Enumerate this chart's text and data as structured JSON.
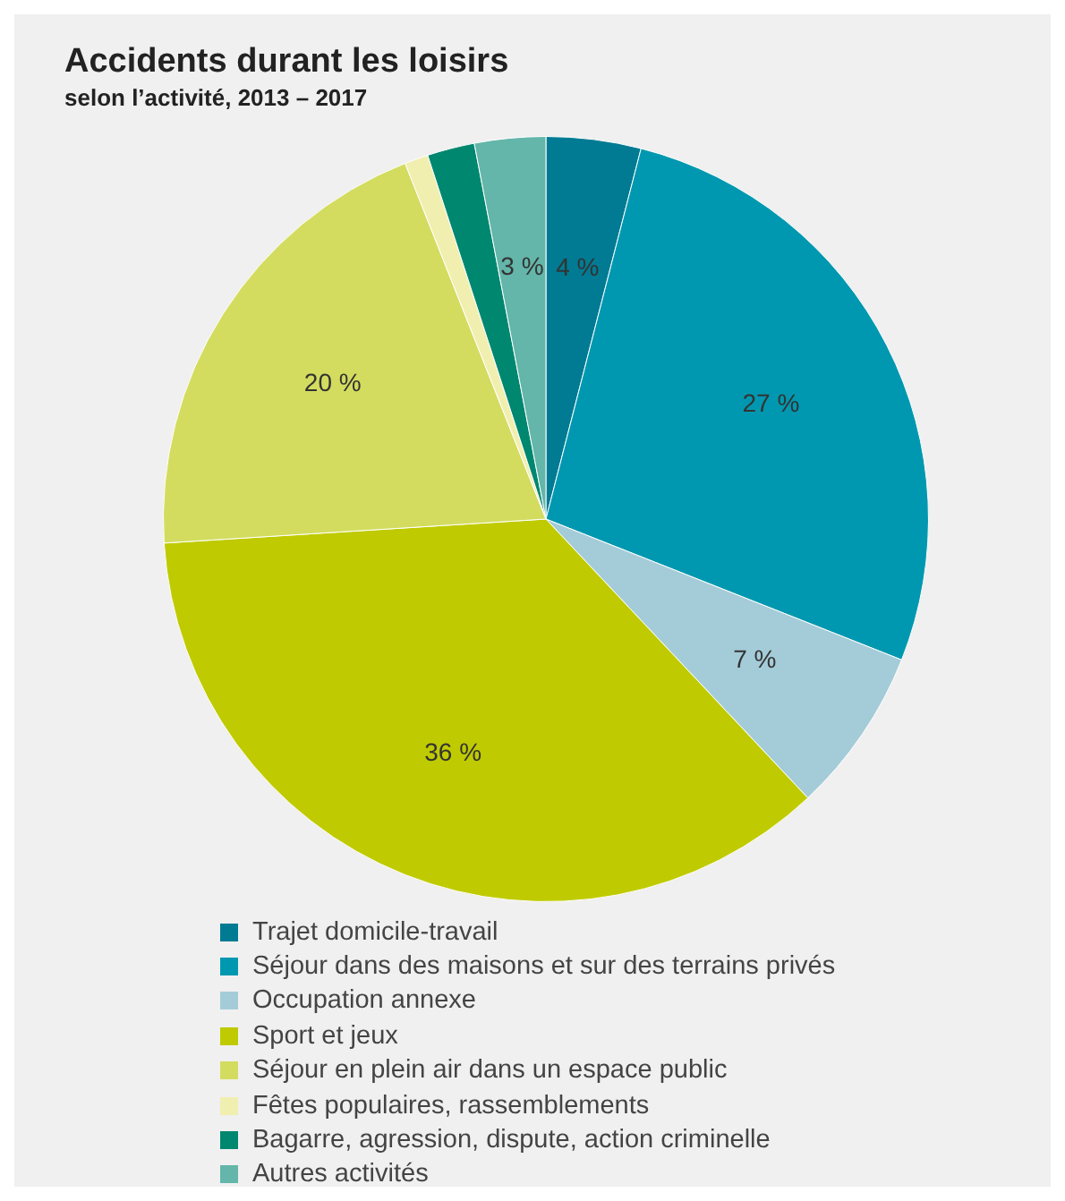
{
  "chart_data": {
    "type": "pie",
    "title": "Accidents durant les loisirs",
    "subtitle": "selon l’activité, 2013 – 2017",
    "categories": [
      "Trajet domicile-travail",
      "Séjour dans des maisons et sur des terrains privés",
      "Occupation annexe",
      "Sport et jeux",
      "Séjour en plein air dans un espace public",
      "Fêtes populaires, rassemblements",
      "Bagarre, agression, dispute, action criminelle",
      "Autres activités"
    ],
    "values": [
      4,
      27,
      7,
      36,
      20,
      1,
      2,
      3
    ],
    "colors": [
      "#007b93",
      "#0098b0",
      "#a4ccd8",
      "#bfcb00",
      "#d3dc5f",
      "#f1efb0",
      "#00876f",
      "#63b6a9"
    ],
    "value_labels": [
      "4 %",
      "27 %",
      "7 %",
      "36 %",
      "20 %",
      null,
      null,
      "3 %"
    ],
    "legend": "bottom"
  }
}
